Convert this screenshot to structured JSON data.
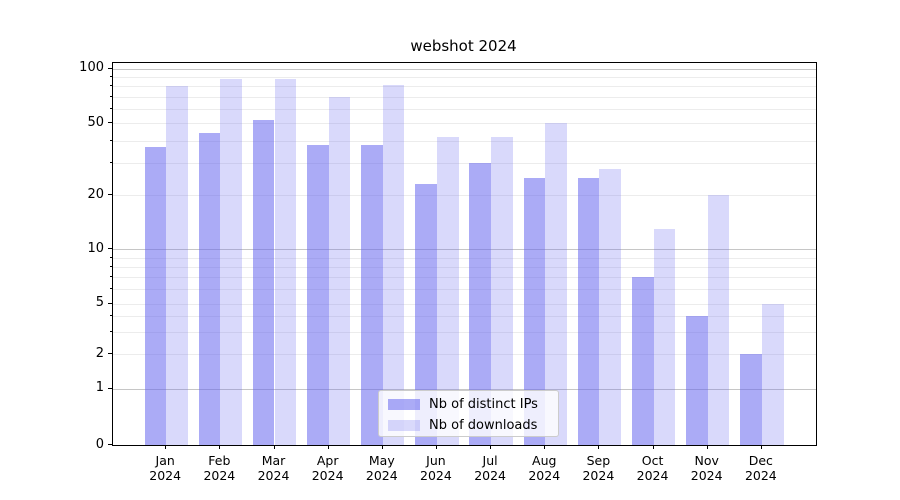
{
  "title": "webshot 2024",
  "chart_data": {
    "type": "bar",
    "title": "webshot 2024",
    "categories": [
      "Jan 2024",
      "Feb 2024",
      "Mar 2024",
      "Apr 2024",
      "May 2024",
      "Jun 2024",
      "Jul 2024",
      "Aug 2024",
      "Sep 2024",
      "Oct 2024",
      "Nov 2024",
      "Dec 2024"
    ],
    "series": [
      {
        "name": "Nb of distinct IPs",
        "values": [
          37,
          44,
          52,
          38,
          38,
          23,
          30,
          25,
          25,
          7,
          4,
          2
        ]
      },
      {
        "name": "Nb of downloads",
        "values": [
          80,
          88,
          88,
          70,
          81,
          42,
          42,
          50,
          28,
          13,
          20,
          5
        ]
      }
    ],
    "xlabel": "",
    "ylabel": "",
    "y_scale": "log-with-zero",
    "y_tick_values": [
      0,
      1,
      2,
      5,
      10,
      20,
      50,
      100
    ],
    "ylim": [
      0,
      110
    ],
    "grid": "both, horizontal only",
    "legend_position": "lower center, inside axes"
  },
  "axes": {
    "y_tick_labels": [
      "100",
      "50",
      "20",
      "10",
      "5",
      "2",
      "1",
      "0"
    ],
    "x_ticks": [
      {
        "month": "Jan",
        "year": "2024"
      },
      {
        "month": "Feb",
        "year": "2024"
      },
      {
        "month": "Mar",
        "year": "2024"
      },
      {
        "month": "Apr",
        "year": "2024"
      },
      {
        "month": "May",
        "year": "2024"
      },
      {
        "month": "Jun",
        "year": "2024"
      },
      {
        "month": "Jul",
        "year": "2024"
      },
      {
        "month": "Aug",
        "year": "2024"
      },
      {
        "month": "Sep",
        "year": "2024"
      },
      {
        "month": "Oct",
        "year": "2024"
      },
      {
        "month": "Nov",
        "year": "2024"
      },
      {
        "month": "Dec",
        "year": "2024"
      }
    ]
  },
  "legend": {
    "items": [
      {
        "label": "Nb of distinct IPs",
        "color": "#6666ee",
        "alpha": 0.55,
        "apparent_hex": "#a9a9ed"
      },
      {
        "label": "Nb of downloads",
        "color": "#6666ee",
        "alpha": 0.25,
        "apparent_hex": "#d9d9f6"
      }
    ]
  },
  "colors": {
    "grid_major": "#c6c6c6",
    "grid_minor": "#ececec",
    "spine": "#000000",
    "background": "#ffffff"
  }
}
